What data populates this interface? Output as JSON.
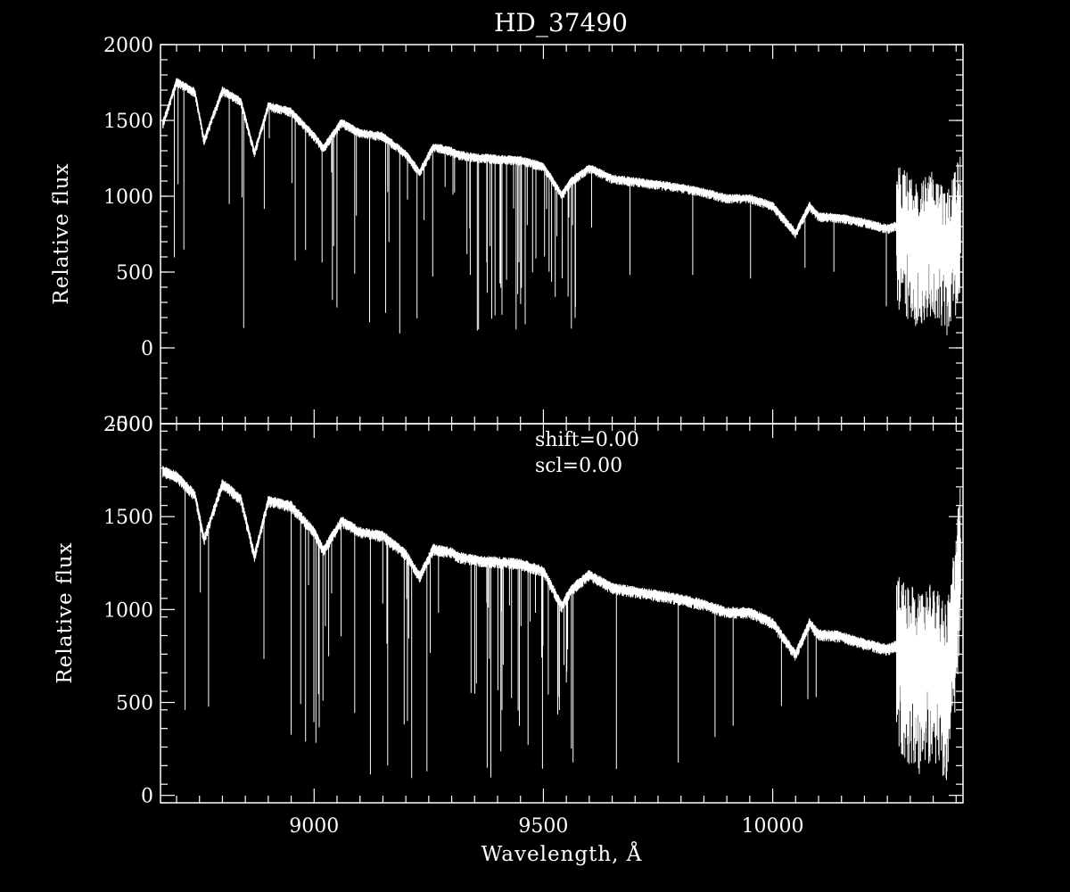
{
  "chart_data": [
    {
      "type": "line",
      "title": "HD_37490",
      "xlabel": "",
      "ylabel": "Relative flux",
      "xlim": [
        8665,
        10415
      ],
      "ylim": [
        -500,
        2000
      ],
      "y_ticks": [
        -500,
        0,
        500,
        1000,
        1500,
        2000
      ],
      "x_ticks": [
        9000,
        9500,
        10000
      ],
      "x_tick_labels_shown": false,
      "annotations": [],
      "series": [
        {
          "name": "",
          "color": "#ffffff",
          "x": [
            8670,
            8700,
            8740,
            8760,
            8800,
            8840,
            8870,
            8900,
            8950,
            9000,
            9020,
            9060,
            9100,
            9150,
            9200,
            9230,
            9260,
            9300,
            9310,
            9350,
            9400,
            9450,
            9500,
            9540,
            9560,
            9600,
            9650,
            9700,
            9750,
            9800,
            9850,
            9900,
            9950,
            10000,
            10050,
            10080,
            10100,
            10150,
            10200,
            10250,
            10280,
            10320,
            10350,
            10380,
            10410
          ],
          "y": [
            1480,
            1760,
            1690,
            1370,
            1700,
            1630,
            1290,
            1600,
            1560,
            1400,
            1320,
            1490,
            1420,
            1400,
            1280,
            1160,
            1330,
            1300,
            1280,
            1260,
            1250,
            1240,
            1200,
            1010,
            1100,
            1190,
            1120,
            1100,
            1080,
            1060,
            1030,
            990,
            990,
            940,
            760,
            940,
            870,
            860,
            830,
            790,
            820,
            720,
            800,
            650,
            900
          ]
        }
      ]
    },
    {
      "type": "line",
      "title": "",
      "xlabel": "Wavelength, Å",
      "ylabel": "Relative flux",
      "xlim": [
        8665,
        10415
      ],
      "ylim": [
        -40,
        2000
      ],
      "y_ticks": [
        0,
        500,
        1000,
        1500,
        2000
      ],
      "x_ticks": [
        9000,
        9500,
        10000
      ],
      "x_tick_labels": [
        "9000",
        "9500",
        "10000"
      ],
      "annotations": [
        "shift=0.00",
        "scl=0.00"
      ],
      "series": [
        {
          "name": "",
          "color": "#ffffff",
          "x": [
            8670,
            8700,
            8740,
            8760,
            8800,
            8840,
            8870,
            8900,
            8950,
            9000,
            9020,
            9060,
            9100,
            9150,
            9200,
            9230,
            9260,
            9300,
            9310,
            9350,
            9400,
            9450,
            9500,
            9540,
            9560,
            9600,
            9650,
            9700,
            9750,
            9800,
            9850,
            9900,
            9950,
            10000,
            10050,
            10080,
            10100,
            10150,
            10200,
            10250,
            10280,
            10320,
            10350,
            10380,
            10410
          ],
          "y": [
            1750,
            1720,
            1620,
            1380,
            1680,
            1600,
            1290,
            1590,
            1560,
            1420,
            1320,
            1480,
            1420,
            1400,
            1300,
            1180,
            1330,
            1310,
            1290,
            1270,
            1260,
            1250,
            1210,
            1020,
            1110,
            1190,
            1120,
            1100,
            1080,
            1060,
            1030,
            990,
            990,
            930,
            760,
            930,
            870,
            860,
            820,
            790,
            820,
            700,
            800,
            650,
            1300
          ]
        }
      ]
    }
  ]
}
